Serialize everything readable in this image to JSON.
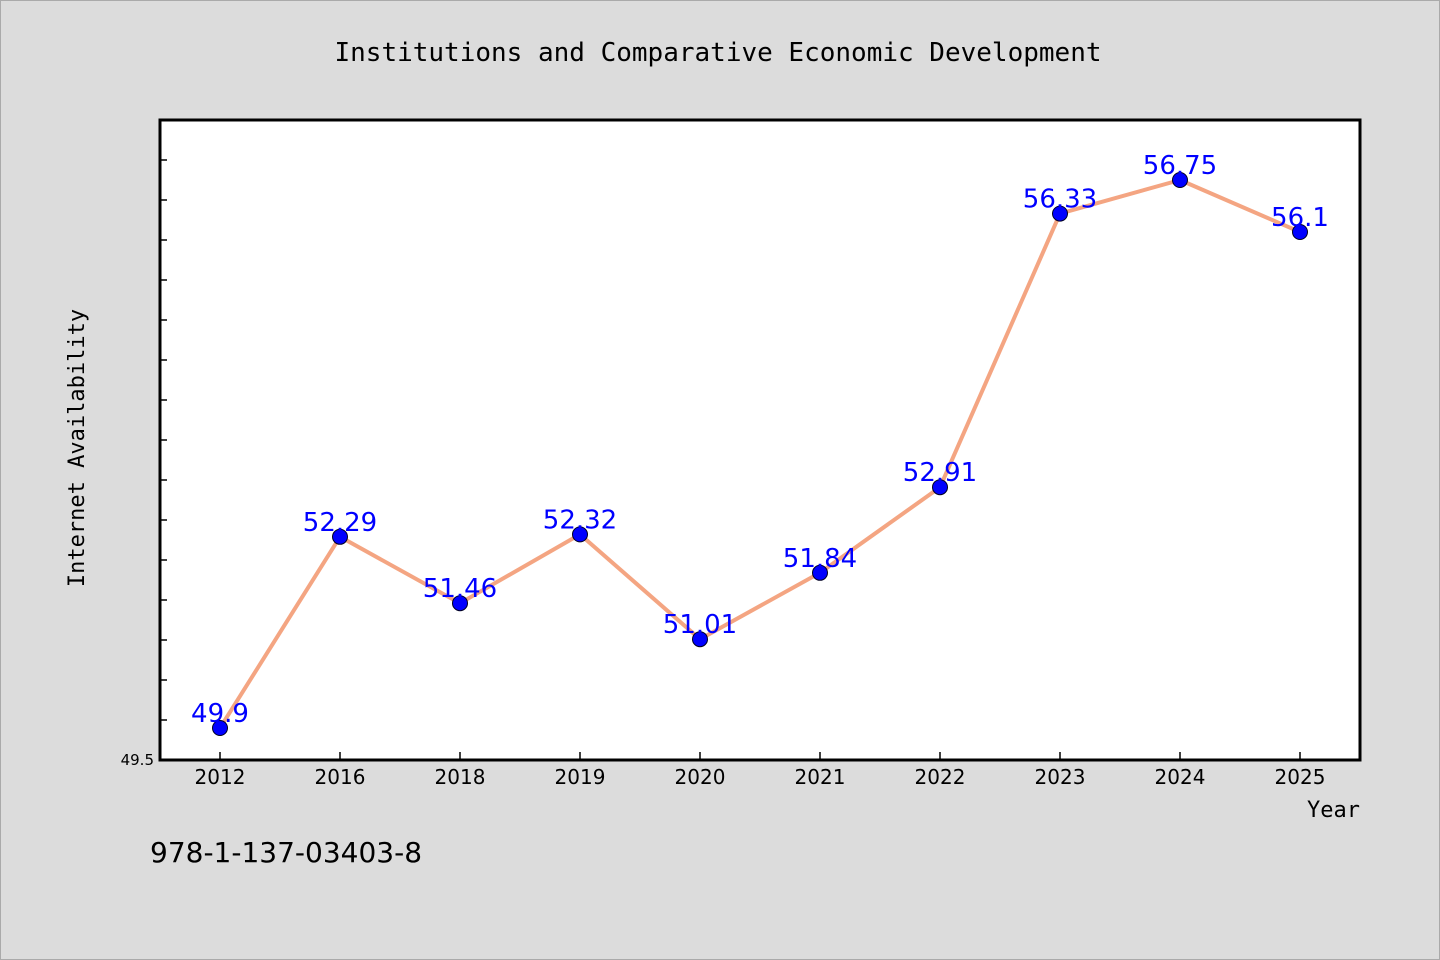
{
  "chart_data": {
    "type": "line",
    "title": "Institutions and Comparative Economic Development",
    "xlabel": "Year",
    "ylabel": "Internet Availability",
    "categories": [
      "2012",
      "2016",
      "2018",
      "2019",
      "2020",
      "2021",
      "2022",
      "2023",
      "2024",
      "2025"
    ],
    "values": [
      49.9,
      52.29,
      51.46,
      52.32,
      51.01,
      51.84,
      52.91,
      56.33,
      56.75,
      56.1
    ],
    "value_labels": [
      "49.9",
      "52.29",
      "51.46",
      "52.32",
      "51.01",
      "51.84",
      "52.91",
      "56.33",
      "56.75",
      "56.1"
    ],
    "ylim": [
      49.5,
      57.5
    ],
    "yticks_labeled": [
      "49.5"
    ],
    "grid": false,
    "legend": "none",
    "colors": {
      "line": "#f4a582",
      "marker": "#0000ff",
      "label": "#0000ff"
    }
  },
  "footer": {
    "text": "978-1-137-03403-8"
  }
}
